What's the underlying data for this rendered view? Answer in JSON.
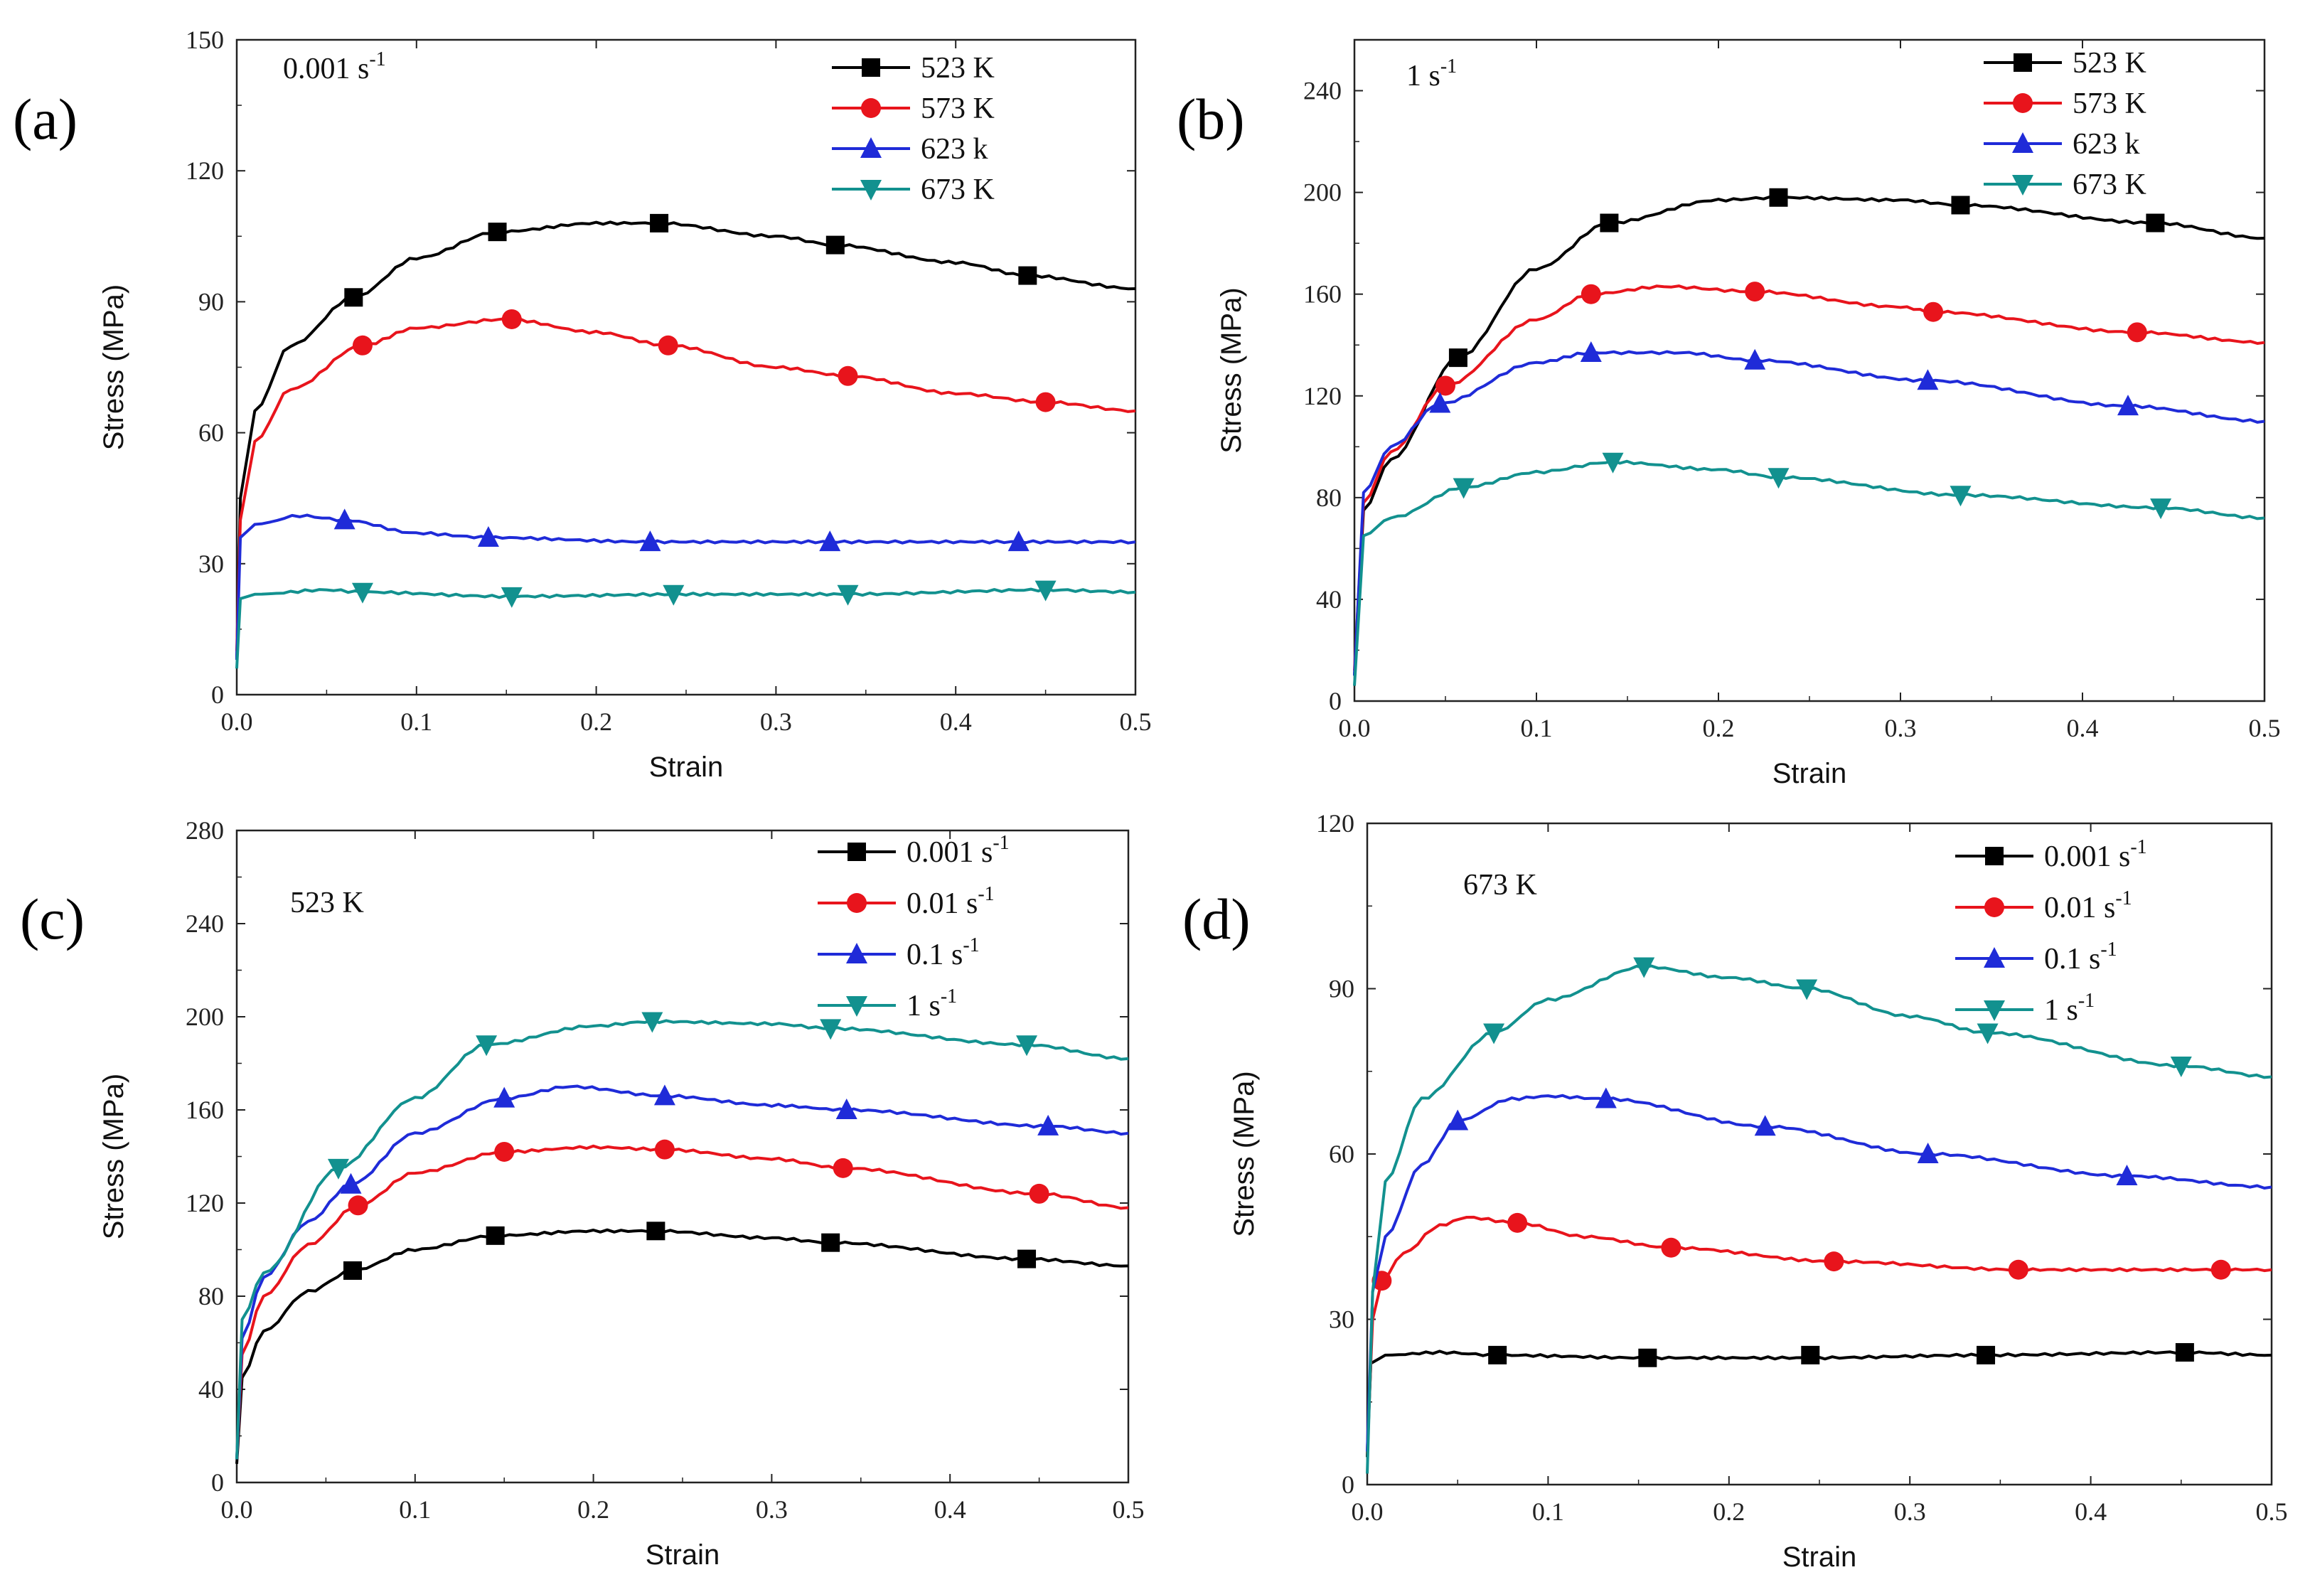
{
  "chart_data": [
    {
      "type": "line",
      "panel_label": "(a)",
      "annotation": "0.001 s",
      "annotation_sup": "-1",
      "xlabel": "Strain",
      "ylabel": "Stress (MPa)",
      "xlim": [
        0,
        0.5
      ],
      "ylim": [
        0,
        150
      ],
      "xticks": [
        0.0,
        0.1,
        0.2,
        0.3,
        0.4,
        0.5
      ],
      "xtick_labels": [
        "0.0",
        "0.1",
        "0.2",
        "0.3",
        "0.4",
        "0.5"
      ],
      "yticks": [
        0,
        30,
        60,
        90,
        120,
        150
      ],
      "ytick_labels": [
        "0",
        "30",
        "60",
        "90",
        "120",
        "150"
      ],
      "series": [
        {
          "name": "523 K",
          "label": "523 K",
          "label_sup": "",
          "color": "#000000",
          "marker": "square",
          "x": [
            0,
            0.002,
            0.01,
            0.03,
            0.065,
            0.1,
            0.145,
            0.2,
            0.235,
            0.3,
            0.333,
            0.4,
            0.44,
            0.5
          ],
          "y": [
            8,
            45,
            65,
            80,
            91,
            100,
            106,
            108,
            108,
            105,
            103,
            99,
            96,
            93
          ],
          "markers": [
            [
              0.065,
              91
            ],
            [
              0.145,
              106
            ],
            [
              0.235,
              108
            ],
            [
              0.333,
              103
            ],
            [
              0.44,
              96
            ]
          ]
        },
        {
          "name": "573 K",
          "label": "573 K",
          "label_sup": "",
          "color": "#e8141c",
          "marker": "circle",
          "x": [
            0,
            0.002,
            0.01,
            0.03,
            0.07,
            0.1,
            0.15,
            0.2,
            0.24,
            0.3,
            0.34,
            0.4,
            0.45,
            0.5
          ],
          "y": [
            10,
            40,
            58,
            70,
            80,
            84,
            86,
            83,
            80,
            75,
            73,
            69,
            67,
            65
          ],
          "markers": [
            [
              0.07,
              80
            ],
            [
              0.153,
              86
            ],
            [
              0.24,
              80
            ],
            [
              0.34,
              73
            ],
            [
              0.45,
              67
            ]
          ]
        },
        {
          "name": "623 k",
          "label": "623 k",
          "label_sup": "",
          "color": "#1f2bd8",
          "marker": "triangle-up",
          "x": [
            0,
            0.002,
            0.01,
            0.035,
            0.06,
            0.1,
            0.14,
            0.23,
            0.33,
            0.435,
            0.5
          ],
          "y": [
            8,
            36,
            39,
            41,
            40,
            37,
            36,
            35,
            35,
            35,
            35
          ],
          "markers": [
            [
              0.06,
              40
            ],
            [
              0.14,
              36
            ],
            [
              0.23,
              35
            ],
            [
              0.33,
              35
            ],
            [
              0.435,
              35
            ]
          ]
        },
        {
          "name": "673 K",
          "label": "673 K",
          "label_sup": "",
          "color": "#12918f",
          "marker": "triangle-down",
          "x": [
            0,
            0.002,
            0.01,
            0.05,
            0.07,
            0.15,
            0.25,
            0.34,
            0.45,
            0.5
          ],
          "y": [
            6,
            22,
            23,
            24,
            23.5,
            22.5,
            23,
            23,
            24,
            23.5
          ],
          "markers": [
            [
              0.07,
              23.5
            ],
            [
              0.153,
              22.5
            ],
            [
              0.243,
              23
            ],
            [
              0.34,
              23
            ],
            [
              0.45,
              24
            ]
          ]
        }
      ]
    },
    {
      "type": "line",
      "panel_label": "(b)",
      "annotation": "1 s",
      "annotation_sup": "-1",
      "xlabel": "Strain",
      "ylabel": "Stress (MPa)",
      "xlim": [
        0,
        0.5
      ],
      "ylim": [
        0,
        260
      ],
      "xticks": [
        0.0,
        0.1,
        0.2,
        0.3,
        0.4,
        0.5
      ],
      "xtick_labels": [
        "0.0",
        "0.1",
        "0.2",
        "0.3",
        "0.4",
        "0.5"
      ],
      "yticks": [
        0,
        40,
        80,
        120,
        160,
        200,
        240
      ],
      "ytick_labels": [
        "0",
        "40",
        "80",
        "120",
        "160",
        "200",
        "240"
      ],
      "series": [
        {
          "name": "523 K",
          "label": "523 K",
          "label_sup": "",
          "color": "#000000",
          "marker": "square",
          "x": [
            0,
            0.005,
            0.02,
            0.057,
            0.1,
            0.14,
            0.2,
            0.233,
            0.3,
            0.333,
            0.44,
            0.5
          ],
          "y": [
            10,
            75,
            95,
            135,
            170,
            188,
            197,
            198,
            197,
            195,
            188,
            182
          ],
          "markers": [
            [
              0.057,
              135
            ],
            [
              0.14,
              188
            ],
            [
              0.233,
              198
            ],
            [
              0.333,
              195
            ],
            [
              0.44,
              188
            ]
          ]
        },
        {
          "name": "573 K",
          "label": "573 K",
          "label_sup": "",
          "color": "#e8141c",
          "marker": "circle",
          "x": [
            0,
            0.005,
            0.02,
            0.05,
            0.1,
            0.13,
            0.17,
            0.22,
            0.3,
            0.318,
            0.43,
            0.5
          ],
          "y": [
            12,
            78,
            98,
            124,
            150,
            160,
            163,
            161,
            155,
            153,
            145,
            141
          ],
          "markers": [
            [
              0.05,
              124
            ],
            [
              0.13,
              160
            ],
            [
              0.22,
              161
            ],
            [
              0.318,
              153
            ],
            [
              0.43,
              145
            ]
          ]
        },
        {
          "name": "623 k",
          "label": "623 k",
          "label_sup": "",
          "color": "#1f2bd8",
          "marker": "triangle-up",
          "x": [
            0,
            0.005,
            0.02,
            0.047,
            0.1,
            0.13,
            0.18,
            0.22,
            0.315,
            0.425,
            0.5
          ],
          "y": [
            10,
            82,
            100,
            117,
            133,
            137,
            137,
            134,
            126,
            116,
            110
          ],
          "markers": [
            [
              0.047,
              117
            ],
            [
              0.13,
              137
            ],
            [
              0.22,
              134
            ],
            [
              0.315,
              126
            ],
            [
              0.425,
              116
            ]
          ]
        },
        {
          "name": "673 K",
          "label": "673 K",
          "label_sup": "",
          "color": "#12918f",
          "marker": "triangle-down",
          "x": [
            0,
            0.005,
            0.02,
            0.06,
            0.1,
            0.142,
            0.2,
            0.233,
            0.333,
            0.443,
            0.5
          ],
          "y": [
            6,
            65,
            72,
            84,
            90,
            94,
            91,
            88,
            81,
            76,
            72
          ],
          "markers": [
            [
              0.06,
              84
            ],
            [
              0.142,
              94
            ],
            [
              0.233,
              88
            ],
            [
              0.333,
              81
            ],
            [
              0.443,
              76
            ]
          ]
        }
      ]
    },
    {
      "type": "line",
      "panel_label": "(c)",
      "annotation": "523 K",
      "annotation_sup": "",
      "xlabel": "Strain",
      "ylabel": "Stress (MPa)",
      "xlim": [
        0,
        0.5
      ],
      "ylim": [
        0,
        280
      ],
      "xticks": [
        0.0,
        0.1,
        0.2,
        0.3,
        0.4,
        0.5
      ],
      "xtick_labels": [
        "0.0",
        "0.1",
        "0.2",
        "0.3",
        "0.4",
        "0.5"
      ],
      "yticks": [
        0,
        40,
        80,
        120,
        160,
        200,
        240,
        280
      ],
      "ytick_labels": [
        "0",
        "40",
        "80",
        "120",
        "160",
        "200",
        "240",
        "280"
      ],
      "series": [
        {
          "name": "0.001 s-1",
          "label": "0.001 s",
          "label_sup": "-1",
          "color": "#000000",
          "marker": "square",
          "x": [
            0,
            0.003,
            0.015,
            0.04,
            0.065,
            0.1,
            0.145,
            0.2,
            0.235,
            0.3,
            0.333,
            0.443,
            0.5
          ],
          "y": [
            8,
            45,
            65,
            82,
            91,
            100,
            106,
            108,
            108,
            105,
            103,
            96,
            93
          ],
          "markers": [
            [
              0.065,
              91
            ],
            [
              0.145,
              106
            ],
            [
              0.235,
              108
            ],
            [
              0.333,
              103
            ],
            [
              0.443,
              96
            ]
          ]
        },
        {
          "name": "0.01 s-1",
          "label": "0.01 s",
          "label_sup": "-1",
          "color": "#e8141c",
          "marker": "circle",
          "x": [
            0,
            0.003,
            0.015,
            0.04,
            0.068,
            0.1,
            0.15,
            0.2,
            0.24,
            0.3,
            0.34,
            0.45,
            0.5
          ],
          "y": [
            10,
            55,
            80,
            102,
            119,
            133,
            142,
            144,
            143,
            139,
            135,
            124,
            118
          ],
          "markers": [
            [
              0.068,
              119
            ],
            [
              0.15,
              142
            ],
            [
              0.24,
              143
            ],
            [
              0.34,
              135
            ],
            [
              0.45,
              124
            ]
          ]
        },
        {
          "name": "0.1 s-1",
          "label": "0.1 s",
          "label_sup": "-1",
          "color": "#1f2bd8",
          "marker": "triangle-up",
          "x": [
            0,
            0.003,
            0.015,
            0.04,
            0.064,
            0.1,
            0.15,
            0.187,
            0.24,
            0.3,
            0.342,
            0.455,
            0.5
          ],
          "y": [
            10,
            62,
            88,
            112,
            128,
            150,
            165,
            170,
            166,
            162,
            160,
            153,
            150
          ],
          "markers": [
            [
              0.064,
              128
            ],
            [
              0.15,
              165
            ],
            [
              0.24,
              166
            ],
            [
              0.342,
              160
            ],
            [
              0.455,
              153
            ]
          ]
        },
        {
          "name": "1 s-1",
          "label": "1 s",
          "label_sup": "-1",
          "color": "#12918f",
          "marker": "triangle-down",
          "x": [
            0,
            0.003,
            0.015,
            0.057,
            0.1,
            0.14,
            0.2,
            0.233,
            0.3,
            0.333,
            0.443,
            0.5
          ],
          "y": [
            10,
            70,
            90,
            135,
            165,
            188,
            196,
            198,
            197,
            195,
            188,
            182
          ],
          "markers": [
            [
              0.057,
              135
            ],
            [
              0.14,
              188
            ],
            [
              0.233,
              198
            ],
            [
              0.333,
              195
            ],
            [
              0.443,
              188
            ]
          ]
        }
      ]
    },
    {
      "type": "line",
      "panel_label": "(d)",
      "annotation": "673 K",
      "annotation_sup": "",
      "xlabel": "Strain",
      "ylabel": "Stress (MPa)",
      "xlim": [
        0,
        0.5
      ],
      "ylim": [
        0,
        120
      ],
      "xticks": [
        0.0,
        0.1,
        0.2,
        0.3,
        0.4,
        0.5
      ],
      "xtick_labels": [
        "0.0",
        "0.1",
        "0.2",
        "0.3",
        "0.4",
        "0.5"
      ],
      "yticks": [
        0,
        30,
        60,
        90,
        120
      ],
      "ytick_labels": [
        "0",
        "30",
        "60",
        "90",
        "120"
      ],
      "series": [
        {
          "name": "0.001 s-1",
          "label": "0.001 s",
          "label_sup": "-1",
          "color": "#000000",
          "marker": "square",
          "x": [
            0,
            0.002,
            0.01,
            0.04,
            0.072,
            0.155,
            0.245,
            0.342,
            0.452,
            0.5
          ],
          "y": [
            5,
            22,
            23.5,
            24,
            23.5,
            23,
            23,
            23.5,
            24,
            23.5
          ],
          "markers": [
            [
              0.072,
              23.5
            ],
            [
              0.155,
              23
            ],
            [
              0.245,
              23.5
            ],
            [
              0.342,
              23.5
            ],
            [
              0.452,
              24
            ]
          ]
        },
        {
          "name": "0.01 s-1",
          "label": "0.01 s",
          "label_sup": "-1",
          "color": "#e8141c",
          "marker": "circle",
          "x": [
            0,
            0.003,
            0.008,
            0.02,
            0.04,
            0.055,
            0.083,
            0.12,
            0.168,
            0.258,
            0.36,
            0.472,
            0.5
          ],
          "y": [
            6,
            30,
            37,
            42,
            47,
            48.5,
            47.5,
            45,
            43,
            40.5,
            39,
            39,
            39
          ],
          "markers": [
            [
              0.008,
              37
            ],
            [
              0.083,
              47.5
            ],
            [
              0.168,
              43
            ],
            [
              0.258,
              40.5
            ],
            [
              0.36,
              39
            ],
            [
              0.472,
              39
            ]
          ]
        },
        {
          "name": "0.1 s-1",
          "label": "0.1 s",
          "label_sup": "-1",
          "color": "#1f2bd8",
          "marker": "triangle-up",
          "x": [
            0,
            0.003,
            0.01,
            0.03,
            0.05,
            0.08,
            0.1,
            0.132,
            0.22,
            0.31,
            0.42,
            0.5
          ],
          "y": [
            6,
            35,
            45,
            58,
            66,
            70,
            70.5,
            70,
            65,
            60,
            56,
            54
          ],
          "markers": [
            [
              0.05,
              66
            ],
            [
              0.132,
              70
            ],
            [
              0.22,
              65
            ],
            [
              0.31,
              60
            ],
            [
              0.42,
              56
            ]
          ]
        },
        {
          "name": "1 s-1",
          "label": "1 s",
          "label_sup": "-1",
          "color": "#12918f",
          "marker": "triangle-down",
          "x": [
            0,
            0.003,
            0.01,
            0.03,
            0.07,
            0.1,
            0.153,
            0.2,
            0.243,
            0.3,
            0.343,
            0.45,
            0.5
          ],
          "y": [
            2,
            35,
            55,
            70,
            82,
            88,
            94,
            92,
            90,
            85,
            82,
            76,
            74
          ],
          "markers": [
            [
              0.07,
              82
            ],
            [
              0.153,
              94
            ],
            [
              0.243,
              90
            ],
            [
              0.343,
              82
            ],
            [
              0.45,
              76
            ]
          ]
        }
      ]
    }
  ]
}
